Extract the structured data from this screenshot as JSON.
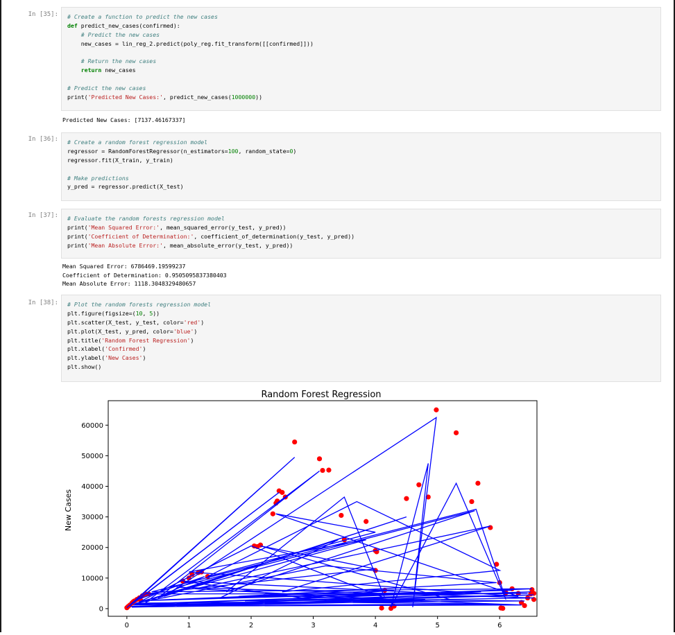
{
  "cells": [
    {
      "prompt": "In [35]:",
      "lines": [
        [
          {
            "t": "cm",
            "v": "# Create a function to predict the new cases"
          }
        ],
        [
          {
            "t": "kw",
            "v": "def"
          },
          {
            "t": "",
            "v": " predict_new_cases(confirmed):"
          }
        ],
        [
          {
            "t": "",
            "v": "    "
          },
          {
            "t": "cm",
            "v": "# Predict the new cases"
          }
        ],
        [
          {
            "t": "",
            "v": "    new_cases = lin_reg_2.predict(poly_reg.fit_transform([[confirmed]]))"
          }
        ],
        [
          {
            "t": "",
            "v": ""
          }
        ],
        [
          {
            "t": "",
            "v": "    "
          },
          {
            "t": "cm",
            "v": "# Return the new cases"
          }
        ],
        [
          {
            "t": "",
            "v": "    "
          },
          {
            "t": "kw",
            "v": "return"
          },
          {
            "t": "",
            "v": " new_cases"
          }
        ],
        [
          {
            "t": "",
            "v": ""
          }
        ],
        [
          {
            "t": "cm",
            "v": "# Predict the new cases"
          }
        ],
        [
          {
            "t": "",
            "v": "print("
          },
          {
            "t": "st",
            "v": "'Predicted New Cases:'"
          },
          {
            "t": "",
            "v": ", predict_new_cases("
          },
          {
            "t": "nu",
            "v": "1000000"
          },
          {
            "t": "",
            "v": "))"
          }
        ]
      ],
      "output": "Predicted New Cases: [7137.46167337]"
    },
    {
      "prompt": "In [36]:",
      "lines": [
        [
          {
            "t": "cm",
            "v": "# Create a random forest regression model"
          }
        ],
        [
          {
            "t": "",
            "v": "regressor = RandomForestRegressor(n_estimators="
          },
          {
            "t": "nu",
            "v": "100"
          },
          {
            "t": "",
            "v": ", random_state="
          },
          {
            "t": "nu",
            "v": "0"
          },
          {
            "t": "",
            "v": ")"
          }
        ],
        [
          {
            "t": "",
            "v": "regressor.fit(X_train, y_train)"
          }
        ],
        [
          {
            "t": "",
            "v": ""
          }
        ],
        [
          {
            "t": "cm",
            "v": "# Make predictions"
          }
        ],
        [
          {
            "t": "",
            "v": "y_pred = regressor.predict(X_test)"
          }
        ]
      ],
      "output": ""
    },
    {
      "prompt": "In [37]:",
      "lines": [
        [
          {
            "t": "cm",
            "v": "# Evaluate the random forests regression model"
          }
        ],
        [
          {
            "t": "",
            "v": "print("
          },
          {
            "t": "st",
            "v": "'Mean Squared Error:'"
          },
          {
            "t": "",
            "v": ", mean_squared_error(y_test, y_pred))"
          }
        ],
        [
          {
            "t": "",
            "v": "print("
          },
          {
            "t": "st",
            "v": "'Coefficient of Determination:'"
          },
          {
            "t": "",
            "v": ", coefficient_of_determination(y_test, y_pred))"
          }
        ],
        [
          {
            "t": "",
            "v": "print("
          },
          {
            "t": "st",
            "v": "'Mean Absolute Error:'"
          },
          {
            "t": "",
            "v": ", mean_absolute_error(y_test, y_pred))"
          }
        ]
      ],
      "output": "Mean Squared Error: 6786469.19599237\nCoefficient of Determination: 0.9505095837380403\nMean Absolute Error: 1118.3048329480657"
    },
    {
      "prompt": "In [38]:",
      "lines": [
        [
          {
            "t": "cm",
            "v": "# Plot the random forests regression model"
          }
        ],
        [
          {
            "t": "",
            "v": "plt.figure(figsize=("
          },
          {
            "t": "nu",
            "v": "10"
          },
          {
            "t": "",
            "v": ", "
          },
          {
            "t": "nu",
            "v": "5"
          },
          {
            "t": "",
            "v": "))"
          }
        ],
        [
          {
            "t": "",
            "v": "plt.scatter(X_test, y_test, color="
          },
          {
            "t": "st",
            "v": "'red'"
          },
          {
            "t": "",
            "v": ")"
          }
        ],
        [
          {
            "t": "",
            "v": "plt.plot(X_test, y_pred, color="
          },
          {
            "t": "st",
            "v": "'blue'"
          },
          {
            "t": "",
            "v": ")"
          }
        ],
        [
          {
            "t": "",
            "v": "plt.title("
          },
          {
            "t": "st",
            "v": "'Random Forest Regression'"
          },
          {
            "t": "",
            "v": ")"
          }
        ],
        [
          {
            "t": "",
            "v": "plt.xlabel("
          },
          {
            "t": "st",
            "v": "'Confirmed'"
          },
          {
            "t": "",
            "v": ")"
          }
        ],
        [
          {
            "t": "",
            "v": "plt.ylabel("
          },
          {
            "t": "st",
            "v": "'New Cases'"
          },
          {
            "t": "",
            "v": ")"
          }
        ],
        [
          {
            "t": "",
            "v": "plt.show()"
          }
        ]
      ],
      "output": ""
    }
  ],
  "colors": {
    "scatter": "#ff0000",
    "line": "#0000ff",
    "comment": "#408080",
    "keyword": "#008000",
    "string": "#ba2121",
    "number": "#008000"
  },
  "chart_data": {
    "type": "scatter",
    "title": "Random Forest Regression",
    "ylabel": "New Cases",
    "xlim": [
      -0.3,
      6.6
    ],
    "ylim": [
      -2500,
      68000
    ],
    "x_ticks": [
      0,
      1,
      2,
      3,
      4,
      5,
      6
    ],
    "x_tick_labels": [
      "0",
      "1",
      "2",
      "3",
      "4",
      "5",
      "6"
    ],
    "y_ticks": [
      0,
      10000,
      20000,
      30000,
      40000,
      50000,
      60000
    ],
    "y_tick_labels": [
      "0",
      "10000",
      "20000",
      "30000",
      "40000",
      "50000",
      "60000"
    ],
    "series": [
      {
        "kind": "scatter",
        "color": "#ff0000",
        "points": [
          [
            0.0,
            300
          ],
          [
            0.02,
            700
          ],
          [
            0.05,
            1200
          ],
          [
            0.08,
            1800
          ],
          [
            0.12,
            2500
          ],
          [
            0.16,
            3000
          ],
          [
            0.2,
            3500
          ],
          [
            0.25,
            4200
          ],
          [
            0.3,
            4800
          ],
          [
            0.35,
            4800
          ],
          [
            0.1,
            2200
          ],
          [
            0.22,
            2800
          ],
          [
            0.9,
            9000
          ],
          [
            1.0,
            10000
          ],
          [
            1.05,
            11200
          ],
          [
            1.15,
            11800
          ],
          [
            1.2,
            12000
          ],
          [
            1.3,
            10500
          ],
          [
            2.05,
            20500
          ],
          [
            2.15,
            20800
          ],
          [
            2.1,
            20300
          ],
          [
            2.35,
            31000
          ],
          [
            2.4,
            34500
          ],
          [
            2.42,
            35200
          ],
          [
            2.45,
            38500
          ],
          [
            2.5,
            38000
          ],
          [
            2.55,
            36500
          ],
          [
            2.7,
            54500
          ],
          [
            3.1,
            49000
          ],
          [
            3.15,
            45200
          ],
          [
            3.25,
            45300
          ],
          [
            3.45,
            30500
          ],
          [
            3.5,
            22500
          ],
          [
            3.85,
            28500
          ],
          [
            4.0,
            19000
          ],
          [
            4.02,
            18600
          ],
          [
            4.0,
            12500
          ],
          [
            4.1,
            200
          ],
          [
            4.15,
            6000
          ],
          [
            4.25,
            100
          ],
          [
            4.3,
            800
          ],
          [
            4.5,
            36000
          ],
          [
            4.7,
            40500
          ],
          [
            4.85,
            36500
          ],
          [
            4.98,
            65000
          ],
          [
            5.3,
            57500
          ],
          [
            5.55,
            35000
          ],
          [
            5.65,
            41000
          ],
          [
            5.85,
            26500
          ],
          [
            5.95,
            14500
          ],
          [
            6.0,
            8500
          ],
          [
            6.02,
            200
          ],
          [
            6.05,
            100
          ],
          [
            6.1,
            5200
          ],
          [
            6.2,
            6500
          ],
          [
            6.3,
            5000
          ],
          [
            6.35,
            2000
          ],
          [
            6.4,
            1000
          ],
          [
            6.45,
            3500
          ],
          [
            6.5,
            4800
          ],
          [
            6.52,
            6200
          ],
          [
            6.55,
            5000
          ],
          [
            6.55,
            3000
          ]
        ]
      },
      {
        "kind": "line",
        "color": "#0000ff",
        "points": [
          [
            0.0,
            300
          ],
          [
            2.7,
            49500
          ],
          [
            0.05,
            1000
          ],
          [
            2.45,
            38000
          ],
          [
            0.2,
            3200
          ],
          [
            1.25,
            10500
          ],
          [
            0.3,
            2000
          ],
          [
            3.1,
            45000
          ],
          [
            0.5,
            3500
          ],
          [
            4.5,
            30000
          ],
          [
            0.6,
            4000
          ],
          [
            4.98,
            62500
          ],
          [
            4.6,
            500
          ],
          [
            4.85,
            47500
          ],
          [
            4.25,
            500
          ],
          [
            5.3,
            41000
          ],
          [
            6.1,
            3000
          ],
          [
            5.62,
            32500
          ],
          [
            0.4,
            5500
          ],
          [
            6.52,
            6500
          ],
          [
            0.1,
            1200
          ],
          [
            6.55,
            3500
          ],
          [
            0.8,
            7000
          ],
          [
            5.6,
            32000
          ],
          [
            1.6,
            5500
          ],
          [
            3.5,
            36500
          ],
          [
            4.15,
            3500
          ],
          [
            2.0,
            20500
          ],
          [
            0.2,
            2200
          ],
          [
            3.85,
            22500
          ],
          [
            1.0,
            12000
          ],
          [
            6.3,
            4000
          ],
          [
            2.4,
            31000
          ],
          [
            4.0,
            25000
          ],
          [
            1.3,
            10500
          ],
          [
            3.7,
            35000
          ],
          [
            6.0,
            12500
          ],
          [
            2.5,
            5500
          ],
          [
            5.85,
            27000
          ],
          [
            1.1,
            6500
          ],
          [
            4.7,
            2500
          ],
          [
            0.15,
            1800
          ],
          [
            3.2,
            14000
          ],
          [
            5.95,
            8500
          ],
          [
            1.8,
            4000
          ],
          [
            6.45,
            5000
          ],
          [
            0.3,
            4800
          ],
          [
            4.0,
            13000
          ],
          [
            2.15,
            20500
          ],
          [
            5.2,
            3000
          ],
          [
            0.05,
            700
          ],
          [
            6.5,
            5500
          ],
          [
            3.0,
            3000
          ],
          [
            0.9,
            9000
          ],
          [
            5.0,
            5000
          ],
          [
            0.35,
            1500
          ],
          [
            6.4,
            2500
          ],
          [
            2.6,
            3200
          ],
          [
            4.3,
            6000
          ],
          [
            0.25,
            2600
          ],
          [
            6.2,
            6000
          ],
          [
            1.5,
            3500
          ],
          [
            3.4,
            22500
          ],
          [
            0.12,
            1500
          ],
          [
            5.7,
            5500
          ],
          [
            2.2,
            4500
          ],
          [
            6.35,
            1200
          ],
          [
            0.2,
            800
          ],
          [
            4.8,
            3000
          ],
          [
            1.9,
            2500
          ],
          [
            6.55,
            4500
          ],
          [
            0.08,
            500
          ],
          [
            3.6,
            2000
          ],
          [
            6.0,
            1500
          ],
          [
            2.8,
            1200
          ],
          [
            0.4,
            600
          ]
        ]
      }
    ]
  }
}
